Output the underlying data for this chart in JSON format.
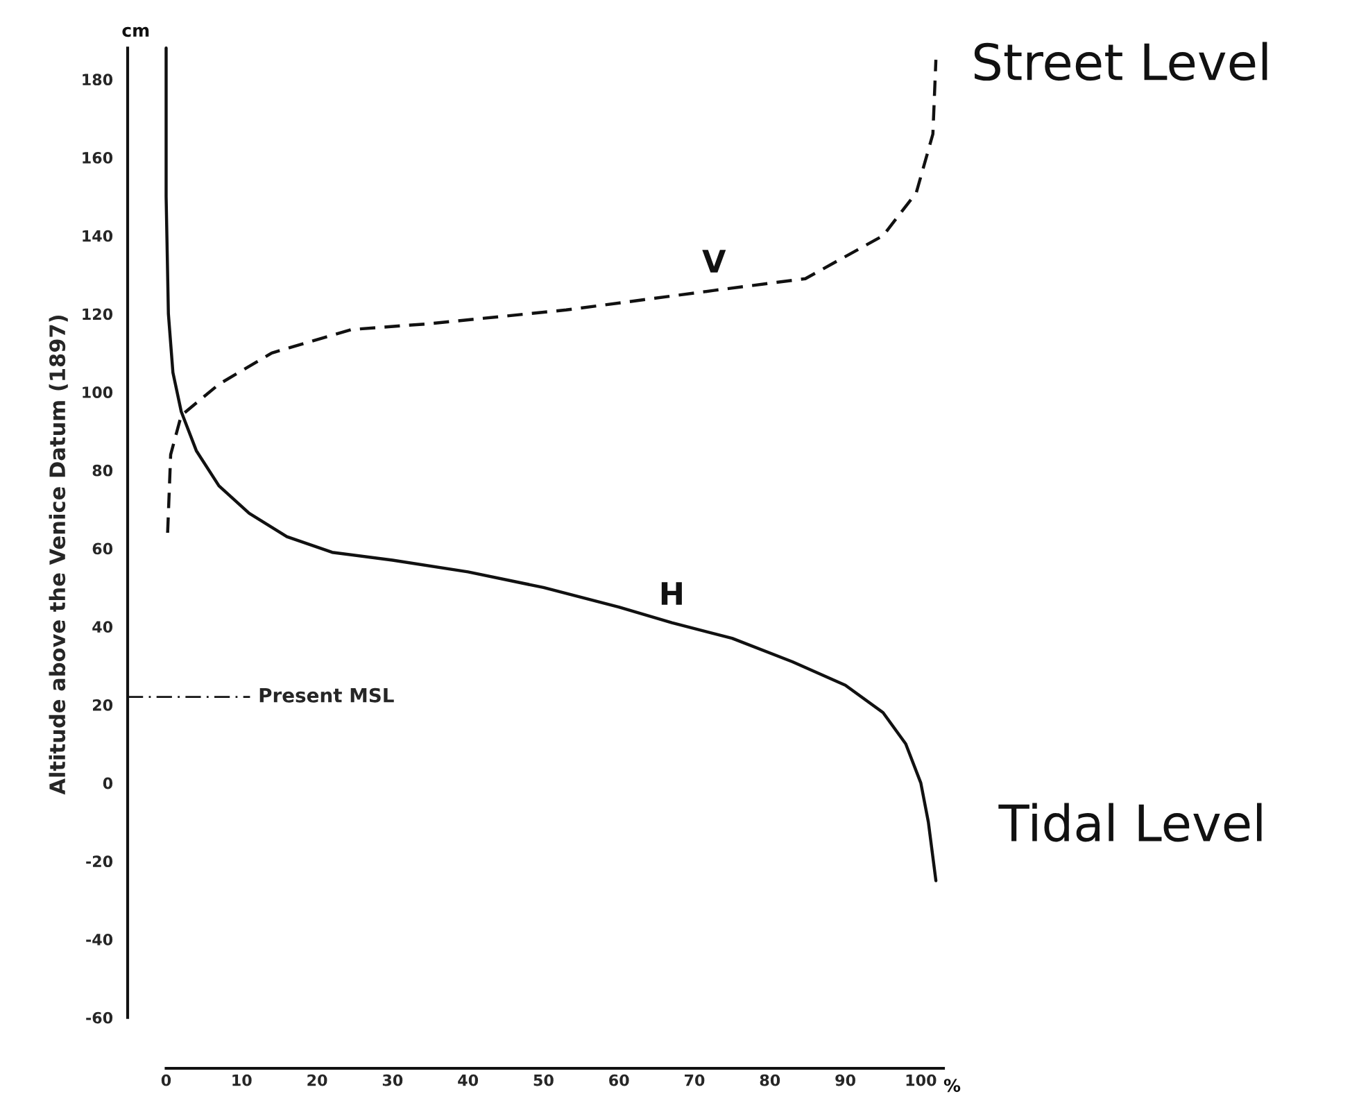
{
  "chart_data": {
    "type": "line",
    "ylabel": "Altitude above the Venice Datum (1897)",
    "x": [
      0,
      0,
      0.3,
      0.9,
      2,
      4,
      7,
      11,
      16,
      22,
      30,
      40,
      50,
      60,
      67,
      75,
      83,
      90,
      95,
      98,
      100,
      101,
      102
    ],
    "series": [
      {
        "name": "H",
        "color": "#111111",
        "line_style": "solid",
        "values": [
          188,
          150,
          120,
          105,
          95,
          85,
          76,
          69,
          63,
          59,
          57,
          54,
          50,
          45,
          41,
          37,
          31,
          25,
          18,
          10,
          0,
          -10,
          -25
        ]
      },
      {
        "name": "V",
        "color": "#111111",
        "line_style": "dashed",
        "x": [
          0.2,
          0.6,
          2,
          7,
          14,
          24.6,
          35,
          53,
          72.6,
          84.7,
          95,
          99.4,
          101.6,
          102
        ],
        "values": [
          64,
          84,
          94,
          102,
          110,
          116,
          117.5,
          121,
          126,
          129,
          140,
          151,
          166,
          185
        ]
      }
    ],
    "xlim": [
      -5.1,
      103
    ],
    "ylim": [
      -73,
      190
    ],
    "xticks": [
      0,
      10,
      20,
      30,
      40,
      50,
      60,
      70,
      80,
      90,
      100
    ],
    "yticks": [
      -60,
      -40,
      -20,
      0,
      20,
      40,
      60,
      80,
      100,
      120,
      140,
      160,
      180
    ],
    "ref_lines": [
      {
        "axis": "y",
        "value": 22,
        "label": "Present MSL",
        "line_style": "dashdot"
      }
    ],
    "annotations": [
      "cm",
      "%",
      "Street Level",
      "Tidal Level"
    ]
  }
}
